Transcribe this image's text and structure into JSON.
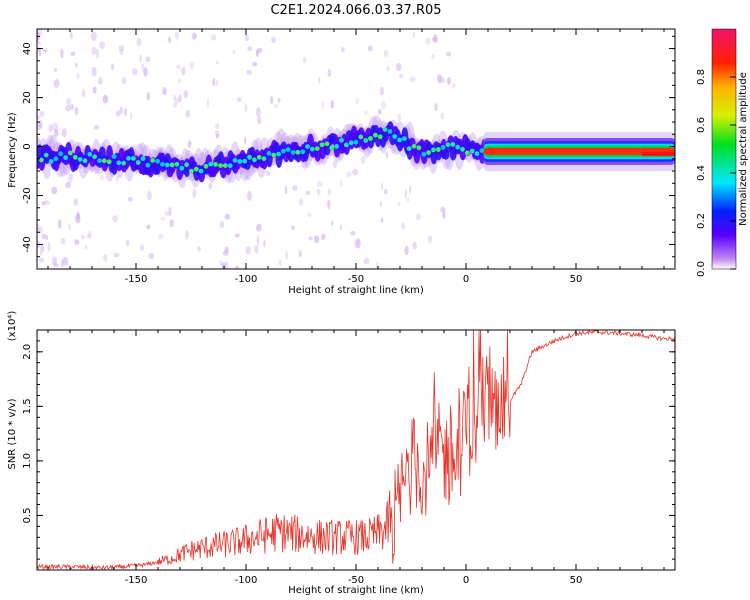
{
  "figure_title": "C2E1.2024.066.03.37.R05",
  "chart_data": [
    {
      "type": "heatmap",
      "title": "C2E1.2024.066.03.37.R05",
      "xlabel": "Height of straight line (km)",
      "ylabel": "Frequency (Hz)",
      "xlim": [
        -195,
        95
      ],
      "ylim": [
        -50,
        48
      ],
      "xticks": [
        -150,
        -100,
        -50,
        0,
        50
      ],
      "xtick_labels": [
        "-150",
        "-100",
        "-50",
        "0",
        "50"
      ],
      "yticks": [
        40,
        20,
        0,
        -20,
        -40
      ],
      "ytick_labels": [
        "40",
        "20",
        "0",
        "-20",
        "-40"
      ],
      "ridge": {
        "x": [
          -195,
          -180,
          -165,
          -150,
          -135,
          -120,
          -105,
          -90,
          -80,
          -70,
          -60,
          -50,
          -40,
          -35,
          -30,
          -25,
          -20,
          -15,
          -10,
          -5,
          0,
          5,
          10,
          30,
          60,
          80,
          95
        ],
        "y": [
          -5,
          -4,
          -5,
          -6,
          -8,
          -9,
          -7,
          -4,
          -1,
          -1,
          1,
          3,
          5,
          6,
          3,
          0,
          -2,
          -2,
          -1,
          0,
          -1,
          -3,
          -2,
          -2,
          -2,
          -3,
          -3
        ]
      },
      "colorbar": {
        "label": "Normalized spectral amplitude",
        "range": [
          0.0,
          1.0
        ],
        "ticks": [
          0.0,
          0.2,
          0.4,
          0.6,
          0.8
        ],
        "tick_labels": [
          "0.0",
          "0.2",
          "0.4",
          "0.6",
          "0.8"
        ]
      }
    },
    {
      "type": "line",
      "xlabel": "Height of straight line (km)",
      "ylabel": "SNR (10 * v/v)",
      "scale_label": "(x10⁴)",
      "xlim": [
        -195,
        95
      ],
      "ylim": [
        0,
        2.2
      ],
      "xticks": [
        -150,
        -100,
        -50,
        0,
        50
      ],
      "xtick_labels": [
        "-150",
        "-100",
        "-50",
        "0",
        "50"
      ],
      "yticks": [
        0.5,
        1.0,
        1.5,
        2.0
      ],
      "ytick_labels": [
        "0.5",
        "1.0",
        "1.5",
        "2.0"
      ],
      "color": "#e8332a",
      "series": [
        {
          "name": "SNR",
          "x": [
            -195,
            -180,
            -165,
            -155,
            -145,
            -135,
            -125,
            -115,
            -105,
            -95,
            -85,
            -75,
            -65,
            -55,
            -45,
            -38,
            -32,
            -28,
            -24,
            -20,
            -16,
            -12,
            -8,
            -4,
            0,
            4,
            8,
            12,
            16,
            20,
            25,
            30,
            35,
            40,
            50,
            60,
            70,
            80,
            90,
            95
          ],
          "y": [
            0.03,
            0.03,
            0.02,
            0.03,
            0.05,
            0.1,
            0.18,
            0.22,
            0.25,
            0.3,
            0.35,
            0.32,
            0.3,
            0.3,
            0.3,
            0.35,
            0.5,
            0.8,
            1.0,
            0.9,
            0.95,
            1.1,
            1.0,
            1.0,
            1.3,
            1.3,
            1.6,
            1.5,
            1.5,
            1.55,
            1.7,
            2.0,
            2.05,
            2.1,
            2.17,
            2.18,
            2.17,
            2.15,
            2.12,
            2.12
          ]
        }
      ]
    }
  ]
}
